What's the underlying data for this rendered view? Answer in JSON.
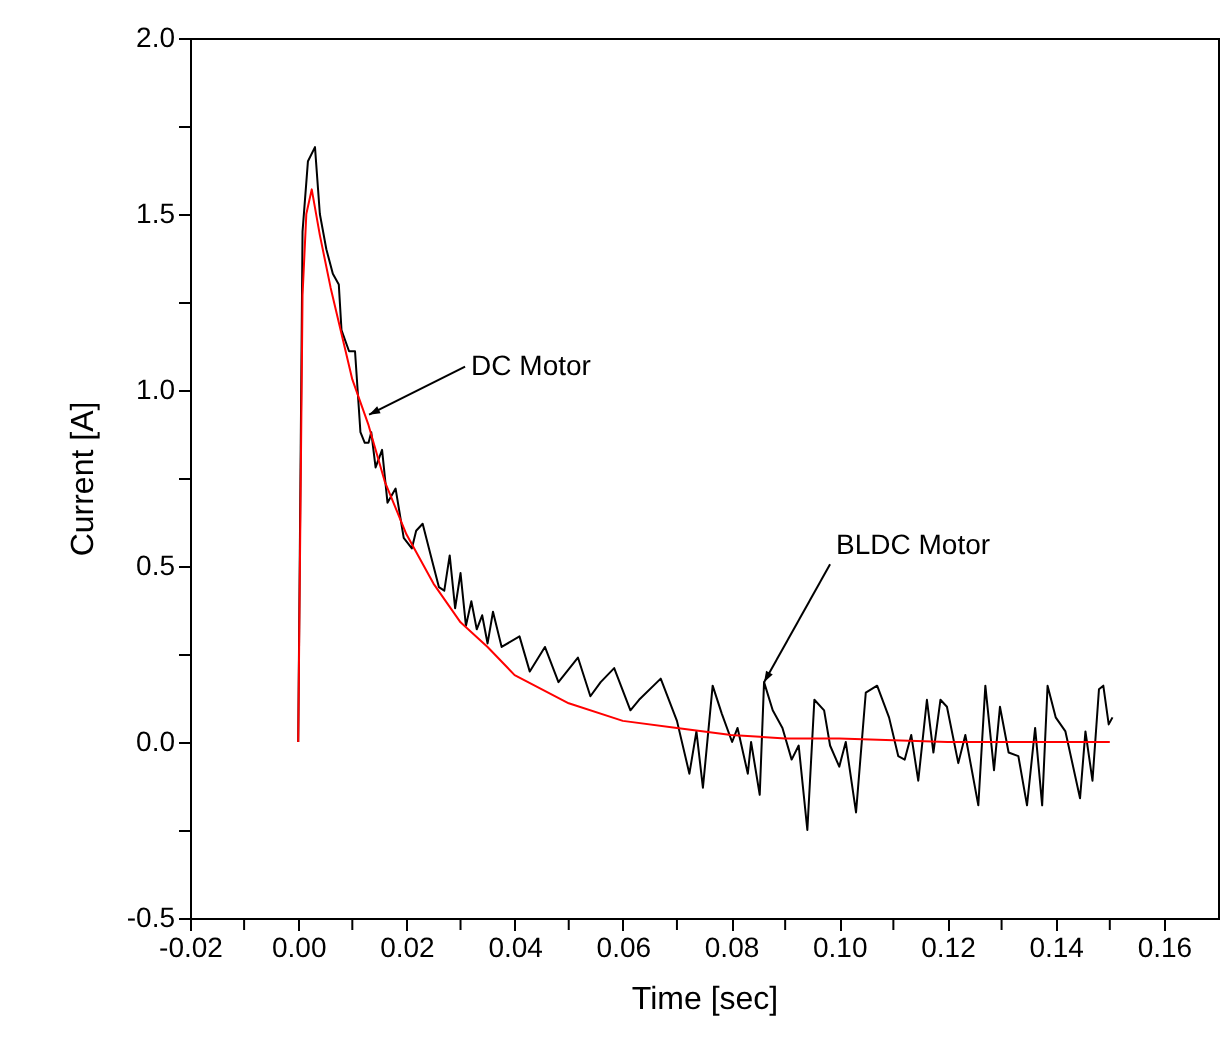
{
  "chart_data": {
    "type": "line",
    "xlabel": "Time [sec]",
    "ylabel": "Current [A]",
    "xlim": [
      -0.02,
      0.17
    ],
    "ylim": [
      -0.5,
      2.0
    ],
    "xticks": [
      {
        "value": -0.02,
        "label": "-0.02"
      },
      {
        "value": -0.01,
        "label": null
      },
      {
        "value": 0,
        "label": "0.00"
      },
      {
        "value": 0.01,
        "label": null
      },
      {
        "value": 0.02,
        "label": "0.02"
      },
      {
        "value": 0.03,
        "label": null
      },
      {
        "value": 0.04,
        "label": "0.04"
      },
      {
        "value": 0.05,
        "label": null
      },
      {
        "value": 0.06,
        "label": "0.06"
      },
      {
        "value": 0.07,
        "label": null
      },
      {
        "value": 0.08,
        "label": "0.08"
      },
      {
        "value": 0.09,
        "label": null
      },
      {
        "value": 0.1,
        "label": "0.10"
      },
      {
        "value": 0.11,
        "label": null
      },
      {
        "value": 0.12,
        "label": "0.12"
      },
      {
        "value": 0.13,
        "label": null
      },
      {
        "value": 0.14,
        "label": "0.14"
      },
      {
        "value": 0.15,
        "label": null
      },
      {
        "value": 0.16,
        "label": "0.16"
      }
    ],
    "yticks": [
      {
        "value": -0.5,
        "label": "-0.5"
      },
      {
        "value": -0.25,
        "label": null
      },
      {
        "value": 0,
        "label": "0.0"
      },
      {
        "value": 0.25,
        "label": null
      },
      {
        "value": 0.5,
        "label": "0.5"
      },
      {
        "value": 0.75,
        "label": null
      },
      {
        "value": 1.0,
        "label": "1.0"
      },
      {
        "value": 1.25,
        "label": null
      },
      {
        "value": 1.5,
        "label": "1.5"
      },
      {
        "value": 1.75,
        "label": null
      },
      {
        "value": 2.0,
        "label": "2.0"
      }
    ],
    "series": [
      {
        "color": "#000000",
        "x": [
          0,
          0.0008,
          0.0018,
          0.0031,
          0.004,
          0.0052,
          0.0064,
          0.0075,
          0.008,
          0.0094,
          0.0105,
          0.0115,
          0.0123,
          0.013,
          0.0135,
          0.0143,
          0.0155,
          0.0165,
          0.018,
          0.0195,
          0.021,
          0.0218,
          0.023,
          0.0245,
          0.026,
          0.027,
          0.028,
          0.029,
          0.03,
          0.031,
          0.032,
          0.033,
          0.034,
          0.035,
          0.036,
          0.0376,
          0.0409,
          0.0428,
          0.0456,
          0.0481,
          0.0517,
          0.054,
          0.0559,
          0.0584,
          0.0614,
          0.063,
          0.067,
          0.07,
          0.0723,
          0.0736,
          0.0748,
          0.0766,
          0.0783,
          0.0802,
          0.0812,
          0.0831,
          0.0837,
          0.0853,
          0.0861,
          0.0877,
          0.0895,
          0.0912,
          0.0925,
          0.0941,
          0.0954,
          0.0972,
          0.0983,
          0.1,
          0.1012,
          0.1031,
          0.1049,
          0.107,
          0.1092,
          0.1109,
          0.1121,
          0.1133,
          0.1146,
          0.1162,
          0.1174,
          0.1187,
          0.1199,
          0.122,
          0.1233,
          0.1257,
          0.127,
          0.1286,
          0.1297,
          0.1313,
          0.1331,
          0.1347,
          0.1362,
          0.1375,
          0.1385,
          0.14,
          0.1418,
          0.1445,
          0.1455,
          0.1468,
          0.148,
          0.1488,
          0.1498,
          0.1505
        ],
        "values": [
          0,
          1.45,
          1.65,
          1.69,
          1.5,
          1.4,
          1.33,
          1.3,
          1.17,
          1.11,
          1.11,
          0.88,
          0.85,
          0.85,
          0.88,
          0.78,
          0.83,
          0.68,
          0.72,
          0.58,
          0.55,
          0.6,
          0.62,
          0.53,
          0.44,
          0.43,
          0.53,
          0.38,
          0.48,
          0.33,
          0.4,
          0.32,
          0.36,
          0.28,
          0.37,
          0.27,
          0.3,
          0.2,
          0.27,
          0.17,
          0.24,
          0.13,
          0.17,
          0.21,
          0.09,
          0.12,
          0.18,
          0.06,
          -0.09,
          0.03,
          -0.13,
          0.16,
          0.08,
          0,
          0.04,
          -0.09,
          0,
          -0.15,
          0.17,
          0.09,
          0.04,
          -0.05,
          -0.01,
          -0.25,
          0.12,
          0.09,
          -0.01,
          -0.07,
          0,
          -0.2,
          0.14,
          0.16,
          0.07,
          -0.04,
          -0.05,
          0.02,
          -0.11,
          0.12,
          -0.03,
          0.12,
          0.1,
          -0.06,
          0.02,
          -0.18,
          0.16,
          -0.08,
          0.1,
          -0.03,
          -0.04,
          -0.18,
          0.04,
          -0.18,
          0.16,
          0.07,
          0.03,
          -0.16,
          0.03,
          -0.11,
          0.15,
          0.16,
          0.05,
          0.07
        ]
      },
      {
        "color": "#ff0000",
        "x": [
          0,
          0.0008,
          0.0015,
          0.0025,
          0.004,
          0.006,
          0.008,
          0.01,
          0.013,
          0.016,
          0.02,
          0.025,
          0.03,
          0.035,
          0.04,
          0.05,
          0.06,
          0.07,
          0.08,
          0.09,
          0.1,
          0.12,
          0.15
        ],
        "values": [
          0,
          1.27,
          1.5,
          1.57,
          1.44,
          1.29,
          1.16,
          1.03,
          0.9,
          0.74,
          0.59,
          0.45,
          0.34,
          0.27,
          0.19,
          0.11,
          0.06,
          0.04,
          0.02,
          0.01,
          0.01,
          0,
          0
        ]
      }
    ],
    "annotations": [
      {
        "text": "DC Motor",
        "x": 0.0131,
        "y": 0.93
      },
      {
        "text": "BLDC Motor",
        "x": 0.0861,
        "y": 0.17
      }
    ]
  }
}
